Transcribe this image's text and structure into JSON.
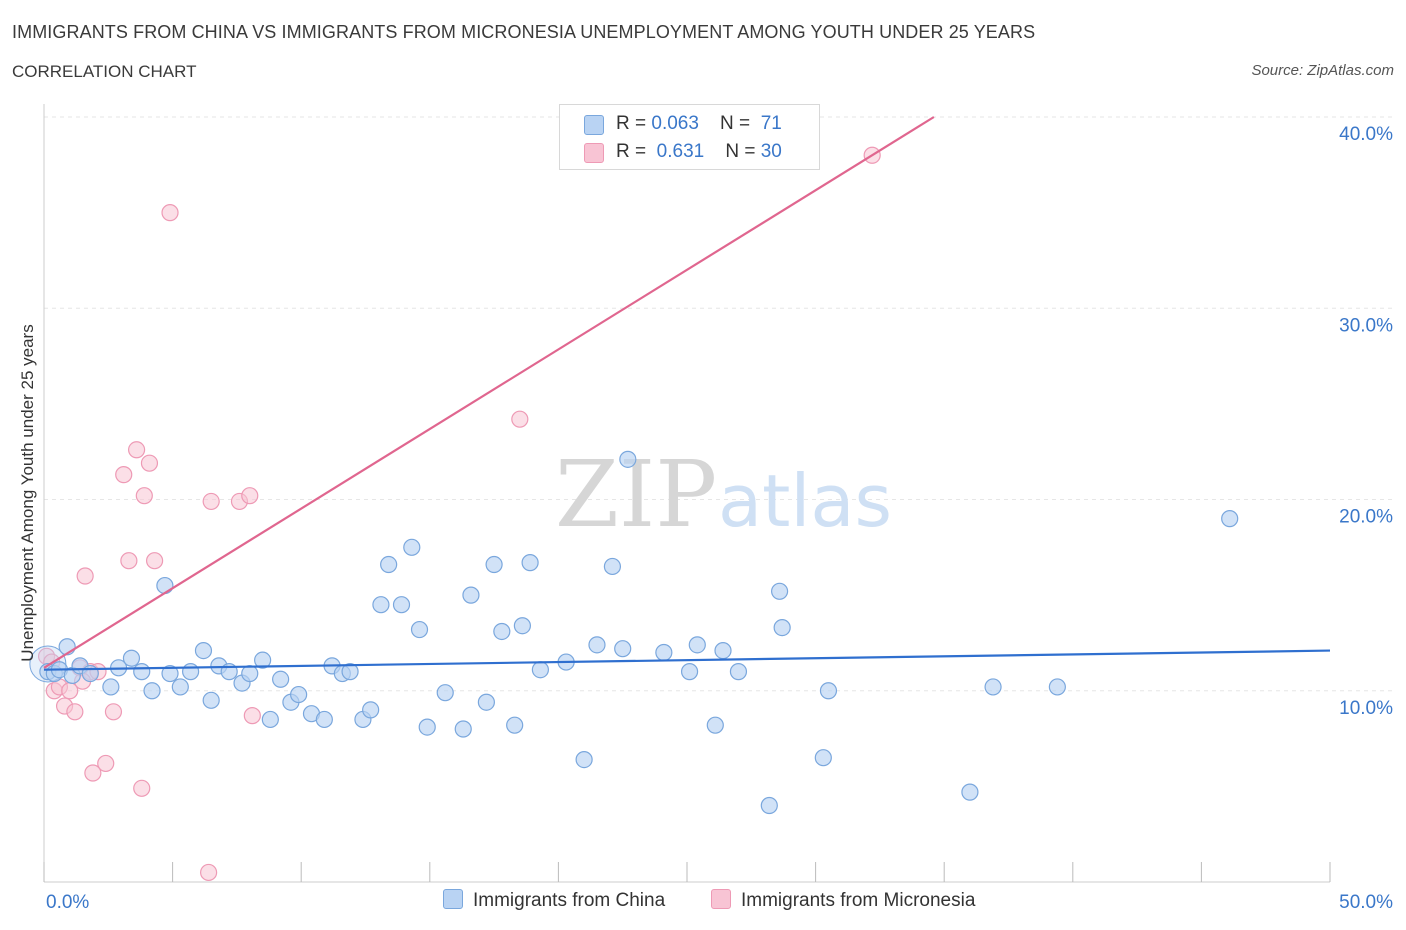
{
  "title": "IMMIGRANTS FROM CHINA VS IMMIGRANTS FROM MICRONESIA UNEMPLOYMENT AMONG YOUTH UNDER 25 YEARS",
  "subtitle": "CORRELATION CHART",
  "source": "Source: ZipAtlas.com",
  "watermark": {
    "zip": "ZIP",
    "atlas": "atlas"
  },
  "legend": {
    "china": {
      "r_label": "R = ",
      "r_value": "0.063",
      "n_label": "N = ",
      "n_value": "71",
      "name": "Immigrants from China"
    },
    "micronesia": {
      "r_label": "R = ",
      "r_value": "0.631",
      "n_label": "N = ",
      "n_value": "30",
      "name": "Immigrants from Micronesia"
    }
  },
  "colors": {
    "china_fill": "#b9d3f3",
    "china_stroke": "#7aa7dd",
    "china_line": "#2f6fcf",
    "micronesia_fill": "#f8c4d4",
    "micronesia_stroke": "#ee9ab5",
    "micronesia_line": "#e0668f",
    "axis_text": "#3a77c9",
    "grid": "#e6e6e6"
  },
  "chart_data": {
    "type": "scatter",
    "title": "IMMIGRANTS FROM CHINA VS IMMIGRANTS FROM MICRONESIA UNEMPLOYMENT AMONG YOUTH UNDER 25 YEARS",
    "xlabel": "",
    "ylabel": "Unemployment Among Youth under 25 years",
    "xlim": [
      0,
      50
    ],
    "ylim": [
      0,
      40
    ],
    "x_tick_labels": [
      "0.0%",
      "50.0%"
    ],
    "y_ticks": [
      10,
      20,
      30,
      40
    ],
    "y_tick_labels": [
      "10.0%",
      "20.0%",
      "30.0%",
      "40.0%"
    ],
    "series": [
      {
        "name": "Immigrants from China",
        "trend": {
          "x0": 0,
          "y0": 11.1,
          "x1": 50,
          "y1": 12.1
        },
        "points": [
          [
            0.15,
            11.0
          ],
          [
            0.4,
            10.9
          ],
          [
            0.6,
            11.1
          ],
          [
            0.9,
            12.3
          ],
          [
            1.1,
            10.8
          ],
          [
            1.4,
            11.3
          ],
          [
            1.8,
            10.9
          ],
          [
            2.6,
            10.2
          ],
          [
            2.9,
            11.2
          ],
          [
            3.4,
            11.7
          ],
          [
            3.8,
            11.0
          ],
          [
            4.2,
            10.0
          ],
          [
            4.7,
            15.5
          ],
          [
            4.9,
            10.9
          ],
          [
            5.3,
            10.2
          ],
          [
            5.7,
            11.0
          ],
          [
            6.2,
            12.1
          ],
          [
            6.5,
            9.5
          ],
          [
            6.8,
            11.3
          ],
          [
            7.2,
            11.0
          ],
          [
            7.7,
            10.4
          ],
          [
            8.0,
            10.9
          ],
          [
            8.5,
            11.6
          ],
          [
            8.8,
            8.5
          ],
          [
            9.2,
            10.6
          ],
          [
            9.6,
            9.4
          ],
          [
            9.9,
            9.8
          ],
          [
            10.4,
            8.8
          ],
          [
            10.9,
            8.5
          ],
          [
            11.2,
            11.3
          ],
          [
            11.6,
            10.9
          ],
          [
            11.9,
            11.0
          ],
          [
            12.4,
            8.5
          ],
          [
            12.7,
            9.0
          ],
          [
            13.1,
            14.5
          ],
          [
            13.4,
            16.6
          ],
          [
            13.9,
            14.5
          ],
          [
            14.3,
            17.5
          ],
          [
            14.6,
            13.2
          ],
          [
            14.9,
            8.1
          ],
          [
            15.6,
            9.9
          ],
          [
            16.3,
            8.0
          ],
          [
            16.6,
            15.0
          ],
          [
            17.2,
            9.4
          ],
          [
            17.5,
            16.6
          ],
          [
            17.8,
            13.1
          ],
          [
            18.3,
            8.2
          ],
          [
            18.6,
            13.4
          ],
          [
            18.9,
            16.7
          ],
          [
            19.3,
            11.1
          ],
          [
            20.3,
            11.5
          ],
          [
            21.0,
            6.4
          ],
          [
            21.5,
            12.4
          ],
          [
            22.1,
            16.5
          ],
          [
            22.5,
            12.2
          ],
          [
            22.7,
            22.1
          ],
          [
            24.1,
            12.0
          ],
          [
            25.1,
            11.0
          ],
          [
            25.4,
            12.4
          ],
          [
            26.1,
            8.2
          ],
          [
            26.4,
            12.1
          ],
          [
            27.0,
            11.0
          ],
          [
            28.2,
            4.0
          ],
          [
            28.6,
            15.2
          ],
          [
            28.7,
            13.3
          ],
          [
            30.3,
            6.5
          ],
          [
            30.5,
            10.0
          ],
          [
            36.0,
            4.7
          ],
          [
            36.9,
            10.2
          ],
          [
            39.4,
            10.2
          ],
          [
            46.1,
            19.0
          ]
        ]
      },
      {
        "name": "Immigrants from Micronesia",
        "trend": {
          "x0": 0,
          "y0": 11.2,
          "x1": 34.6,
          "y1": 40.0
        },
        "points": [
          [
            0.1,
            11.8
          ],
          [
            0.4,
            10.0
          ],
          [
            0.6,
            10.2
          ],
          [
            0.8,
            9.2
          ],
          [
            1.0,
            10.0
          ],
          [
            1.2,
            8.9
          ],
          [
            1.4,
            11.2
          ],
          [
            1.6,
            16.0
          ],
          [
            1.8,
            11.0
          ],
          [
            1.9,
            5.7
          ],
          [
            2.1,
            11.0
          ],
          [
            2.4,
            6.2
          ],
          [
            2.7,
            8.9
          ],
          [
            3.1,
            21.3
          ],
          [
            3.3,
            16.8
          ],
          [
            3.6,
            22.6
          ],
          [
            3.8,
            4.9
          ],
          [
            3.9,
            20.2
          ],
          [
            4.1,
            21.9
          ],
          [
            4.3,
            16.8
          ],
          [
            4.9,
            35.0
          ],
          [
            6.4,
            0.5
          ],
          [
            6.5,
            19.9
          ],
          [
            7.6,
            19.9
          ],
          [
            8.0,
            20.2
          ],
          [
            8.1,
            8.7
          ],
          [
            18.5,
            24.2
          ],
          [
            32.2,
            38.0
          ],
          [
            0.3,
            11.5
          ],
          [
            1.5,
            10.5
          ]
        ]
      }
    ]
  },
  "labels": {
    "x_left": "0.0%",
    "x_right": "50.0%",
    "y_axis_title": "Unemployment Among Youth under 25 years"
  }
}
